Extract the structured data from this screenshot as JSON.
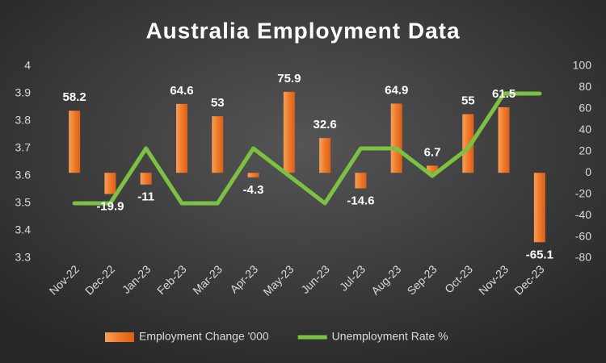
{
  "chart_data": {
    "type": "bar-line",
    "title": "Australia Employment Data",
    "categories": [
      "Nov-22",
      "Dec-22",
      "Jan-23",
      "Feb-23",
      "Mar-23",
      "Apr-23",
      "May-23",
      "Jun-23",
      "Jul-23",
      "Aug-23",
      "Sep-23",
      "Oct-23",
      "Nov-23",
      "Dec-23"
    ],
    "series": [
      {
        "name": "Employment Change '000",
        "type": "bar",
        "axis": "y2",
        "color": "#f07a28",
        "values": [
          58.2,
          -19.9,
          -11,
          64.6,
          53,
          -4.3,
          75.9,
          32.6,
          -14.6,
          64.9,
          6.7,
          55,
          61.5,
          -65.1
        ]
      },
      {
        "name": "Unemployment Rate %",
        "type": "line",
        "color": "#7cc242",
        "values": [
          3.5,
          3.5,
          3.7,
          3.5,
          3.5,
          3.7,
          3.6,
          3.5,
          3.7,
          3.7,
          3.6,
          3.7,
          3.9,
          3.9
        ]
      }
    ],
    "ylim": [
      3.3,
      4
    ],
    "yticks": [
      3.3,
      3.4,
      3.5,
      3.6,
      3.7,
      3.8,
      3.9,
      4
    ],
    "y2lim": [
      -80,
      100
    ],
    "y2ticks": [
      -80,
      -60,
      -40,
      -20,
      0,
      20,
      40,
      60,
      80,
      100
    ],
    "legend": "bottom"
  }
}
